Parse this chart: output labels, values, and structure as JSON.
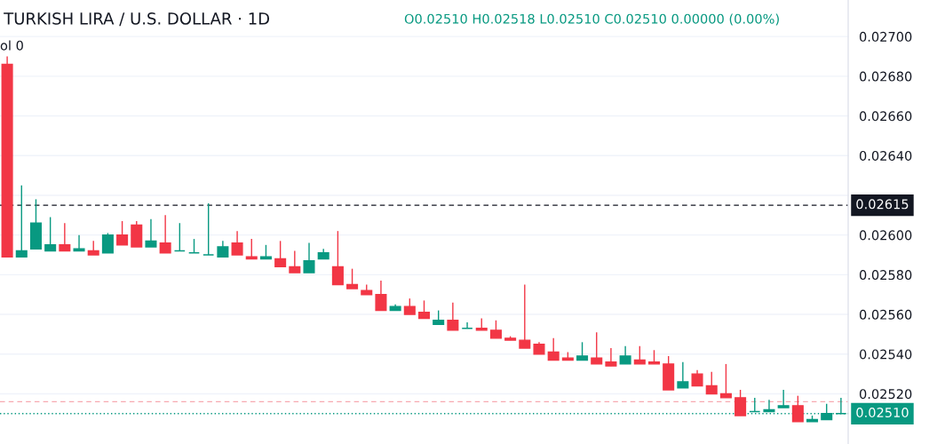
{
  "chart_data": {
    "type": "candlestick",
    "title": "TURKISH LIRA / U.S. DOLLAR · 1D",
    "annotations": [
      "O0.02510 H0.02518 L0.02510 C0.02510 0.00000 (0.00%)",
      "ol 0"
    ],
    "categories": [
      null,
      null,
      null,
      null,
      null,
      null,
      null,
      null,
      null,
      null,
      null,
      null,
      null,
      null,
      null,
      null,
      null,
      null,
      null,
      null,
      null,
      null,
      null,
      null,
      null,
      null,
      null,
      null,
      null,
      null,
      null,
      null,
      null,
      null,
      null,
      null,
      null,
      null,
      null,
      null,
      null,
      null,
      null,
      null,
      null,
      null,
      null,
      null,
      null,
      null,
      null,
      null,
      null,
      null,
      null,
      null,
      null,
      null,
      null
    ],
    "ohlc": [
      [
        0.02686,
        0.0269,
        0.02589,
        0.02589
      ],
      [
        0.02589,
        0.02625,
        0.02589,
        0.02592
      ],
      [
        0.02593,
        0.02618,
        0.02593,
        0.02606
      ],
      [
        0.02592,
        0.02609,
        0.02592,
        0.02595
      ],
      [
        0.02595,
        0.02606,
        0.02592,
        0.02592
      ],
      [
        0.02592,
        0.026,
        0.02592,
        0.02593
      ],
      [
        0.02592,
        0.02597,
        0.0259,
        0.0259
      ],
      [
        0.02591,
        0.02601,
        0.02591,
        0.026
      ],
      [
        0.026,
        0.02607,
        0.02595,
        0.02595
      ],
      [
        0.02605,
        0.02607,
        0.02594,
        0.02594
      ],
      [
        0.02594,
        0.02608,
        0.02594,
        0.02597
      ],
      [
        0.02596,
        0.0261,
        0.02591,
        0.02591
      ],
      [
        0.02592,
        0.02606,
        0.02592,
        0.02592
      ],
      [
        0.02591,
        0.02598,
        0.02591,
        0.02591
      ],
      [
        0.0259,
        0.02616,
        0.0259,
        0.0259
      ],
      [
        0.02589,
        0.02597,
        0.02589,
        0.02594
      ],
      [
        0.02596,
        0.02602,
        0.0259,
        0.0259
      ],
      [
        0.02589,
        0.02598,
        0.02588,
        0.02588
      ],
      [
        0.02588,
        0.02595,
        0.02588,
        0.02589
      ],
      [
        0.02588,
        0.02597,
        0.02584,
        0.02584
      ],
      [
        0.02584,
        0.02592,
        0.02581,
        0.02581
      ],
      [
        0.02581,
        0.02596,
        0.02581,
        0.02587
      ],
      [
        0.02588,
        0.02593,
        0.02588,
        0.02591
      ],
      [
        0.02584,
        0.02602,
        0.02575,
        0.02575
      ],
      [
        0.02575,
        0.02583,
        0.02573,
        0.02573
      ],
      [
        0.02572,
        0.02575,
        0.0257,
        0.0257
      ],
      [
        0.0257,
        0.02577,
        0.02562,
        0.02562
      ],
      [
        0.02562,
        0.02565,
        0.02562,
        0.02564
      ],
      [
        0.02564,
        0.02568,
        0.0256,
        0.0256
      ],
      [
        0.02561,
        0.02567,
        0.02558,
        0.02558
      ],
      [
        0.02555,
        0.02562,
        0.02555,
        0.02557
      ],
      [
        0.02557,
        0.02566,
        0.02552,
        0.02552
      ],
      [
        0.02553,
        0.02556,
        0.02553,
        0.02553
      ],
      [
        0.02553,
        0.02558,
        0.02552,
        0.02552
      ],
      [
        0.02552,
        0.02557,
        0.02548,
        0.02548
      ],
      [
        0.02548,
        0.02549,
        0.02547,
        0.02547
      ],
      [
        0.02547,
        0.02575,
        0.02543,
        0.02543
      ],
      [
        0.02545,
        0.02546,
        0.0254,
        0.0254
      ],
      [
        0.02541,
        0.02548,
        0.02537,
        0.02537
      ],
      [
        0.02538,
        0.02541,
        0.02537,
        0.02537
      ],
      [
        0.02537,
        0.02546,
        0.02537,
        0.02539
      ],
      [
        0.02538,
        0.02551,
        0.02535,
        0.02535
      ],
      [
        0.02536,
        0.02543,
        0.02534,
        0.02534
      ],
      [
        0.02535,
        0.02544,
        0.02535,
        0.02539
      ],
      [
        0.02537,
        0.02544,
        0.02535,
        0.02535
      ],
      [
        0.02536,
        0.02542,
        0.02535,
        0.02535
      ],
      [
        0.02535,
        0.02539,
        0.02522,
        0.02522
      ],
      [
        0.02523,
        0.02536,
        0.02523,
        0.02526
      ],
      [
        0.0253,
        0.02532,
        0.02524,
        0.02524
      ],
      [
        0.02524,
        0.02531,
        0.0252,
        0.0252
      ],
      [
        0.0252,
        0.02535,
        0.02518,
        0.02518
      ],
      [
        0.02518,
        0.02522,
        0.02509,
        0.02509
      ],
      [
        0.02511,
        0.02518,
        0.02511,
        0.02511
      ],
      [
        0.02511,
        0.02517,
        0.02511,
        0.02512
      ],
      [
        0.02513,
        0.02522,
        0.02513,
        0.02514
      ],
      [
        0.02514,
        0.02519,
        0.02506,
        0.02506
      ],
      [
        0.02506,
        0.02509,
        0.02506,
        0.02507
      ],
      [
        0.02507,
        0.02515,
        0.02507,
        0.0251
      ],
      [
        0.0251,
        0.02518,
        0.0251,
        0.0251
      ]
    ],
    "colors": [
      "#f23645",
      "#089981",
      "#089981",
      "#089981",
      "#f23645",
      "#089981",
      "#f23645",
      "#089981",
      "#f23645",
      "#f23645",
      "#089981",
      "#f23645",
      "#089981",
      "#089981",
      "#089981",
      "#089981",
      "#f23645",
      "#f23645",
      "#089981",
      "#f23645",
      "#f23645",
      "#089981",
      "#089981",
      "#f23645",
      "#f23645",
      "#f23645",
      "#f23645",
      "#089981",
      "#f23645",
      "#f23645",
      "#089981",
      "#f23645",
      "#089981",
      "#f23645",
      "#f23645",
      "#f23645",
      "#f23645",
      "#f23645",
      "#f23645",
      "#f23645",
      "#089981",
      "#f23645",
      "#f23645",
      "#089981",
      "#f23645",
      "#f23645",
      "#f23645",
      "#089981",
      "#f23645",
      "#f23645",
      "#f23645",
      "#f23645",
      "#089981",
      "#089981",
      "#089981",
      "#f23645",
      "#089981",
      "#089981",
      "#089981"
    ],
    "ylim": [
      0.024947,
      0.027184
    ],
    "yticks": [
      {
        "value": 0.0252,
        "label": "0.02520"
      },
      {
        "value": 0.0254,
        "label": "0.02540"
      },
      {
        "value": 0.0256,
        "label": "0.02560"
      },
      {
        "value": 0.0258,
        "label": "0.02580"
      },
      {
        "value": 0.026,
        "label": "0.02600"
      },
      {
        "value": 0.0262,
        "label": null
      },
      {
        "value": 0.0264,
        "label": "0.02640"
      },
      {
        "value": 0.0266,
        "label": "0.02660"
      },
      {
        "value": 0.0268,
        "label": "0.02680"
      },
      {
        "value": 0.027,
        "label": "0.02700"
      }
    ],
    "ref_lines": [
      {
        "axis": "y",
        "value": 0.02615,
        "label": "0.02615",
        "color": "#131722",
        "line_style": "dashed"
      },
      {
        "axis": "y",
        "value": 0.02516,
        "color": "#f7a9b0",
        "line_style": "dashed"
      },
      {
        "axis": "y",
        "value": 0.0251,
        "label": "0.02510",
        "color": "#089981",
        "line_style": "dotted"
      }
    ],
    "grid": "y"
  }
}
